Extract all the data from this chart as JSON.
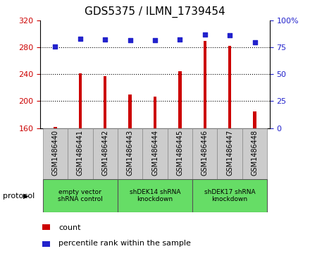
{
  "title": "GDS5375 / ILMN_1739454",
  "samples": [
    "GSM1486440",
    "GSM1486441",
    "GSM1486442",
    "GSM1486443",
    "GSM1486444",
    "GSM1486445",
    "GSM1486446",
    "GSM1486447",
    "GSM1486448"
  ],
  "counts": [
    162,
    241,
    237,
    210,
    207,
    245,
    290,
    282,
    185
  ],
  "percentile_ranks": [
    75.5,
    83,
    82,
    81.5,
    81.5,
    82.5,
    87,
    86,
    80
  ],
  "ylim_left": [
    160,
    320
  ],
  "ylim_right": [
    0,
    100
  ],
  "yticks_left": [
    160,
    200,
    240,
    280,
    320
  ],
  "yticks_right": [
    0,
    25,
    50,
    75,
    100
  ],
  "ytick_right_labels": [
    "0",
    "25",
    "50",
    "75",
    "100%"
  ],
  "bar_color": "#cc0000",
  "dot_color": "#2222cc",
  "grid_color": "#000000",
  "hgrid_values": [
    200,
    240,
    280
  ],
  "group_labels": [
    "empty vector\nshRNA control",
    "shDEK14 shRNA\nknockdown",
    "shDEK17 shRNA\nknockdown"
  ],
  "group_ranges": [
    [
      0,
      3
    ],
    [
      3,
      6
    ],
    [
      6,
      9
    ]
  ],
  "group_color": "#66dd66",
  "sample_box_color": "#cccccc",
  "legend_count_label": "count",
  "legend_pct_label": "percentile rank within the sample",
  "protocol_label": "protocol",
  "bar_width": 0.12,
  "title_fontsize": 11,
  "tick_fontsize": 8,
  "label_fontsize": 7,
  "legend_fontsize": 8
}
